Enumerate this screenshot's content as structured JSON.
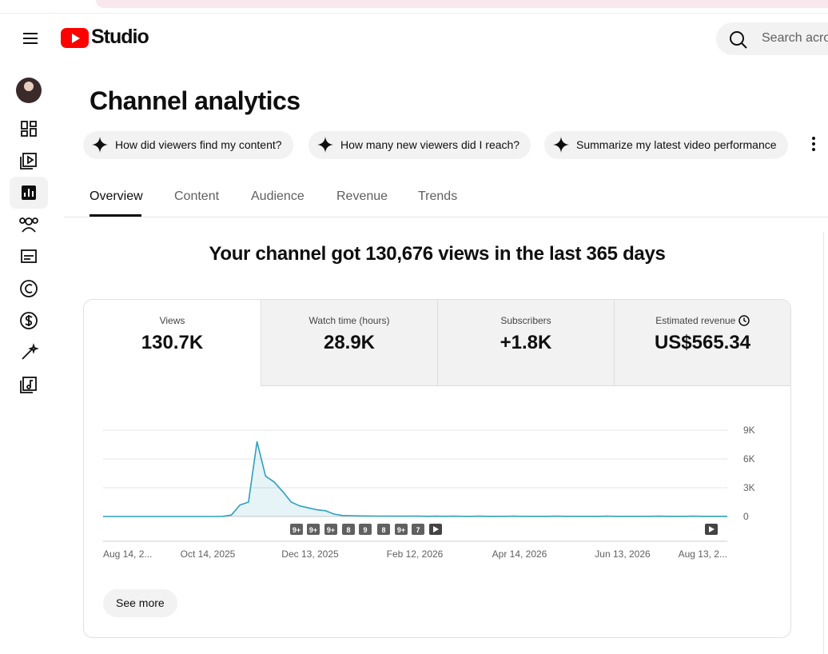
{
  "header": {
    "brand": "Studio",
    "search_placeholder": "Search acro"
  },
  "page_title": "Channel analytics",
  "prompts": [
    "How did viewers find my content?",
    "How many new viewers did I reach?",
    "Summarize my latest video performance"
  ],
  "tabs": [
    "Overview",
    "Content",
    "Audience",
    "Revenue",
    "Trends"
  ],
  "headline": "Your channel got 130,676 views in the last 365 days",
  "metrics": [
    {
      "label": "Views",
      "value": "130.7K"
    },
    {
      "label": "Watch time (hours)",
      "value": "28.9K"
    },
    {
      "label": "Subscribers",
      "value": "+1.8K"
    },
    {
      "label": "Estimated revenue",
      "value": "US$565.34"
    }
  ],
  "chart": {
    "type": "line",
    "color": "#2f9fbf",
    "values": [
      0,
      0,
      0,
      0,
      0,
      0,
      0,
      0,
      0,
      0,
      0,
      0,
      0,
      0,
      20,
      150,
      1200,
      1500,
      7800,
      4200,
      3600,
      2600,
      1500,
      1100,
      900,
      700,
      600,
      250,
      100,
      80,
      60,
      50,
      40,
      40,
      30,
      30,
      40,
      30,
      20,
      30,
      20,
      30,
      20,
      20,
      30,
      20,
      20,
      20,
      30,
      20,
      20,
      20,
      20,
      30,
      20,
      20,
      20,
      20,
      20,
      30,
      20,
      20,
      20,
      20,
      20,
      30,
      20,
      20,
      20,
      30,
      20,
      20,
      20,
      20
    ],
    "ylim": [
      0,
      9000
    ],
    "yticks": [
      0,
      {
        "value": 3000,
        "label": "3K"
      },
      {
        "value": 6000,
        "label": "6K"
      },
      {
        "value": 9000,
        "label": "9K"
      }
    ],
    "xtick_labels": [
      "Aug 14, 2...",
      "Oct 14, 2025",
      "Dec 13, 2025",
      "Feb 12, 2026",
      "Apr 14, 2026",
      "Jun 13, 2026",
      "Aug 13, 2..."
    ],
    "badges": [
      "9+",
      "9+",
      "9+",
      "8",
      "9",
      "8",
      "9+",
      "7"
    ]
  },
  "see_more": "See more"
}
